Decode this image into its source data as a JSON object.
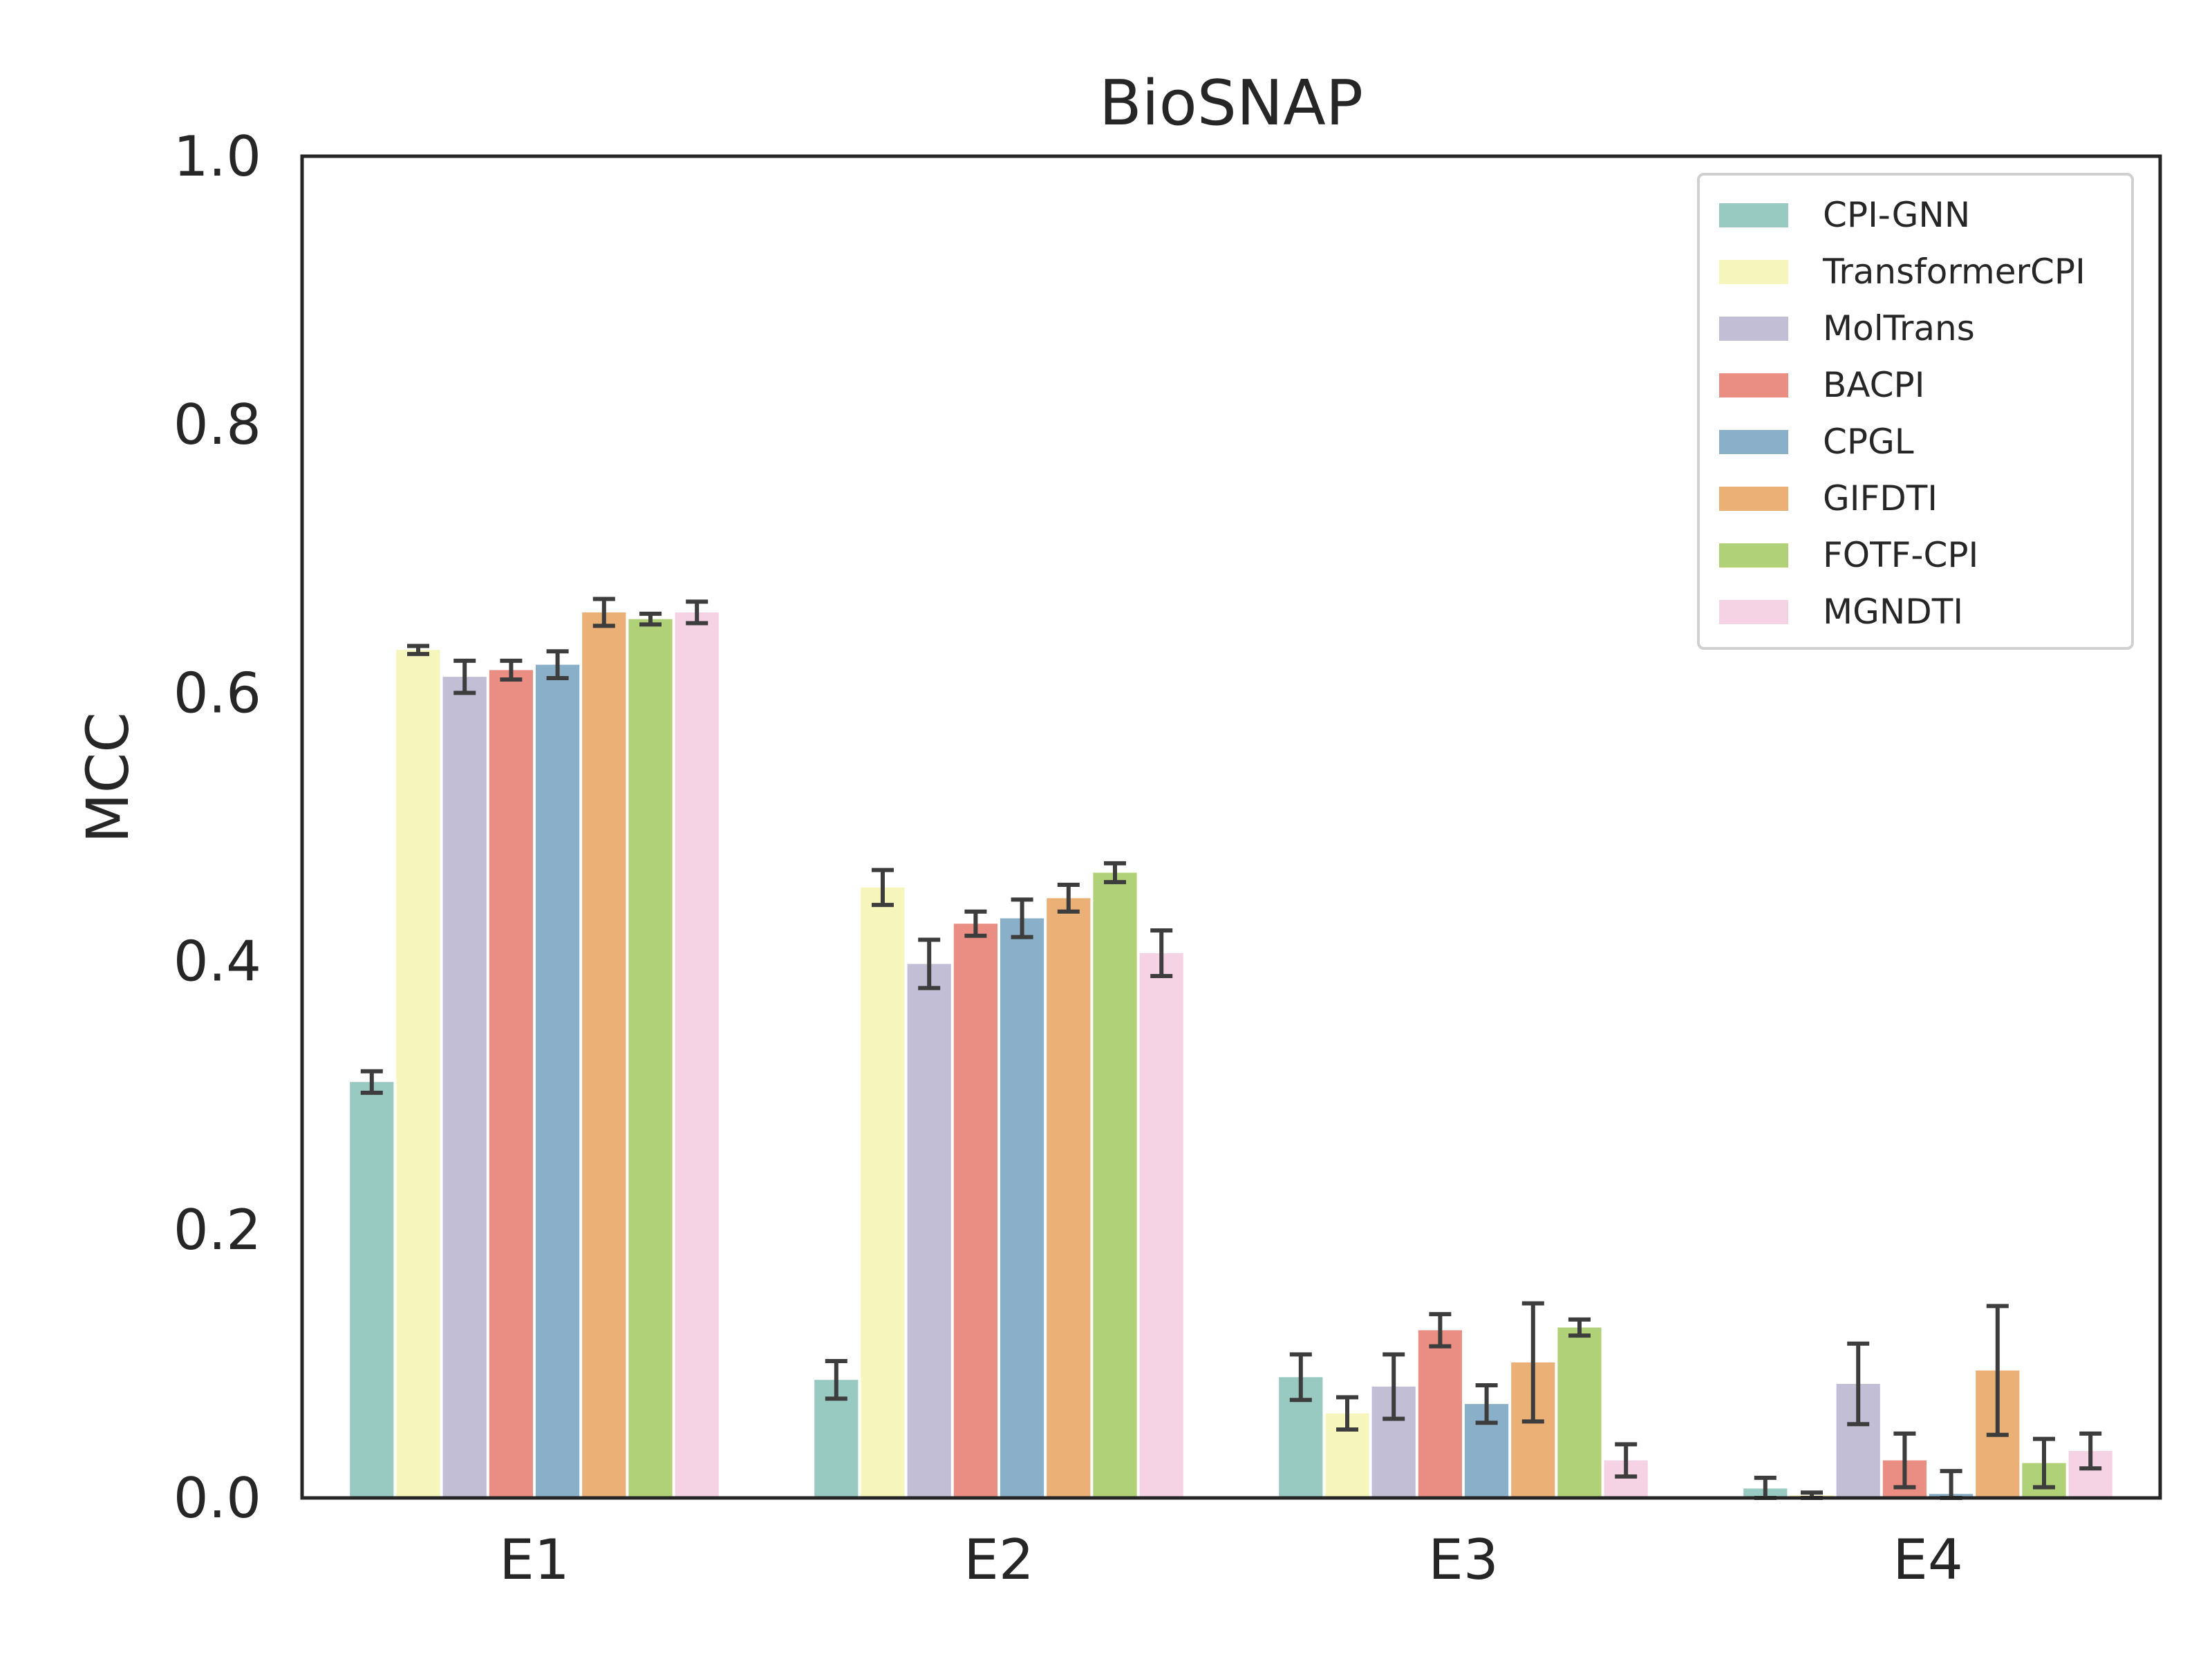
{
  "chart_data": {
    "type": "bar",
    "title": "BioSNAP",
    "xlabel": "",
    "ylabel": "MCC",
    "ylim": [
      0,
      1
    ],
    "yticks": [
      "0.0",
      "0.2",
      "0.4",
      "0.6",
      "0.8",
      "1.0"
    ],
    "categories": [
      "E1",
      "E2",
      "E3",
      "E4"
    ],
    "legend_position": "top-right",
    "grid": false,
    "series": [
      {
        "name": "CPI-GNN",
        "color": "#98CAC1",
        "values": [
          0.31,
          0.088,
          0.09,
          0.007
        ],
        "errors": [
          0.008,
          0.014,
          0.017,
          0.008
        ]
      },
      {
        "name": "TransformerCPI",
        "color": "#F6F6BC",
        "values": [
          0.632,
          0.455,
          0.063,
          0.002
        ],
        "errors": [
          0.003,
          0.013,
          0.012,
          0.002
        ]
      },
      {
        "name": "MolTrans",
        "color": "#C1BED6",
        "values": [
          0.612,
          0.398,
          0.083,
          0.085
        ],
        "errors": [
          0.012,
          0.018,
          0.024,
          0.03
        ]
      },
      {
        "name": "BACPI",
        "color": "#EA8E83",
        "values": [
          0.617,
          0.428,
          0.125,
          0.028
        ],
        "errors": [
          0.007,
          0.009,
          0.012,
          0.02
        ]
      },
      {
        "name": "CPGL",
        "color": "#8AB0C9",
        "values": [
          0.621,
          0.432,
          0.07,
          0.003
        ],
        "errors": [
          0.01,
          0.014,
          0.014,
          0.017
        ]
      },
      {
        "name": "GIFDTI",
        "color": "#EBB076",
        "values": [
          0.66,
          0.447,
          0.101,
          0.095
        ],
        "errors": [
          0.01,
          0.01,
          0.044,
          0.048
        ]
      },
      {
        "name": "FOTF-CPI",
        "color": "#B1D179",
        "values": [
          0.655,
          0.466,
          0.127,
          0.026
        ],
        "errors": [
          0.004,
          0.007,
          0.006,
          0.018
        ]
      },
      {
        "name": "MGNDTI",
        "color": "#F6D3E4",
        "values": [
          0.66,
          0.406,
          0.028,
          0.035
        ],
        "errors": [
          0.008,
          0.017,
          0.012,
          0.013
        ]
      }
    ]
  }
}
